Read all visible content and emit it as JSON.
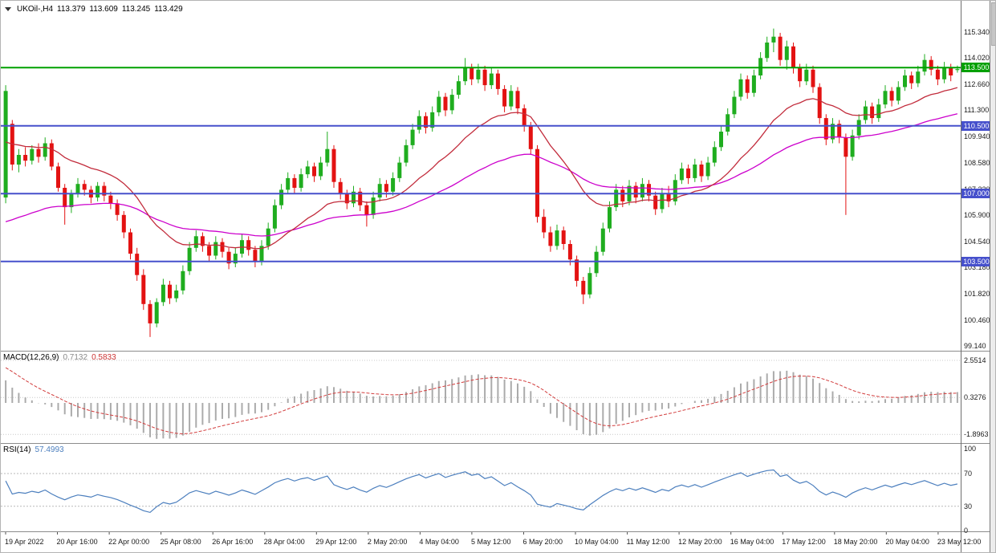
{
  "window": {
    "background": "#FFFFFF"
  },
  "header": {
    "symbol_period": "UKOil-,H4",
    "open": "113.379",
    "high": "113.609",
    "low": "113.245",
    "close": "113.429"
  },
  "macd_panel": {
    "label": "MACD(12,26,9)",
    "value_main": "0.7132",
    "value_signal": "0.5833"
  },
  "rsi_panel": {
    "label": "RSI(14)",
    "value": "57.4993"
  },
  "chart_data": {
    "type": "candlestick",
    "symbol": "UKOil-",
    "timeframe": "H4",
    "title": "UKOil-,H4",
    "ylim": [
      98.89,
      116.87
    ],
    "grid": false,
    "up_color": "#1FAD1F",
    "down_color": "#E31212",
    "price_ticks": [
      "115.340",
      "114.020",
      "112.660",
      "111.300",
      "109.940",
      "108.580",
      "107.220",
      "105.900",
      "104.540",
      "103.180",
      "101.820",
      "100.460",
      "99.140"
    ],
    "hlines": [
      {
        "price": 113.5,
        "label": "113.500",
        "color": "#00A000"
      },
      {
        "price": 110.5,
        "label": "110.500",
        "color": "#4650CC"
      },
      {
        "price": 107.0,
        "label": "107.000",
        "color": "#4650CC"
      },
      {
        "price": 103.5,
        "label": "103.500",
        "color": "#4650CC"
      }
    ],
    "time_labels": [
      "19 Apr 2022",
      "20 Apr 16:00",
      "22 Apr 00:00",
      "25 Apr 08:00",
      "26 Apr 16:00",
      "28 Apr 04:00",
      "29 Apr 12:00",
      "2 May 20:00",
      "4 May 04:00",
      "5 May 12:00",
      "6 May 20:00",
      "10 May 04:00",
      "11 May 12:00",
      "12 May 20:00",
      "16 May 04:00",
      "17 May 12:00",
      "18 May 20:00",
      "20 May 04:00",
      "23 May 12:00"
    ],
    "ma_fast": {
      "period": 21,
      "seed": 109.4,
      "color": "#C22C3C"
    },
    "ma_slow": {
      "period": 55,
      "seed": 105.3,
      "color": "#CC00CC"
    },
    "macd": {
      "fast": 12,
      "slow": 26,
      "signal": 9,
      "seed_fast": 112.8,
      "seed_slow": 111.3,
      "seed_signal": 2.3,
      "ylim": [
        -2.41,
        3.08
      ],
      "ticks": [
        {
          "v": 2.5514,
          "label": "2.5514"
        },
        {
          "v": 0.3276,
          "label": "0.3276"
        },
        {
          "v": -1.8963,
          "label": "-1.8963"
        }
      ],
      "histogram_color": "#ABABAB",
      "signal_color": "#D23C3C"
    },
    "rsi": {
      "period": 14,
      "seed_avg_gain": 0.5,
      "seed_avg_loss": 0.32,
      "ylim": [
        -0.5,
        106.2
      ],
      "ticks": [
        {
          "v": 100,
          "label": "100"
        },
        {
          "v": 70,
          "label": "70"
        },
        {
          "v": 30,
          "label": "30"
        },
        {
          "v": 0,
          "label": "0"
        }
      ],
      "levels": [
        70,
        30
      ],
      "color": "#4C7FBE"
    },
    "candles": [
      [
        106.8,
        112.6,
        106.5,
        112.3
      ],
      [
        110.6,
        110.8,
        108.2,
        108.5
      ],
      [
        108.5,
        109.3,
        108.1,
        109.0
      ],
      [
        109.0,
        109.4,
        108.4,
        108.7
      ],
      [
        108.7,
        109.5,
        108.5,
        109.3
      ],
      [
        109.3,
        109.6,
        108.6,
        108.9
      ],
      [
        108.9,
        109.9,
        108.7,
        109.6
      ],
      [
        109.6,
        109.8,
        108.2,
        108.4
      ],
      [
        108.4,
        108.6,
        107.1,
        107.3
      ],
      [
        107.3,
        107.5,
        105.4,
        106.3
      ],
      [
        106.3,
        107.2,
        106.0,
        107.0
      ],
      [
        107.0,
        107.8,
        106.8,
        107.5
      ],
      [
        107.5,
        107.7,
        106.9,
        107.2
      ],
      [
        107.2,
        107.4,
        106.5,
        106.8
      ],
      [
        106.8,
        107.6,
        106.6,
        107.4
      ],
      [
        107.4,
        107.6,
        106.6,
        106.9
      ],
      [
        106.9,
        107.1,
        106.2,
        106.5
      ],
      [
        106.5,
        106.7,
        105.6,
        105.9
      ],
      [
        105.9,
        106.1,
        104.7,
        105.0
      ],
      [
        105.0,
        105.2,
        103.6,
        103.9
      ],
      [
        103.9,
        104.2,
        102.5,
        102.8
      ],
      [
        102.8,
        103.1,
        101.0,
        101.3
      ],
      [
        101.3,
        101.5,
        99.6,
        100.3
      ],
      [
        100.3,
        101.6,
        100.1,
        101.4
      ],
      [
        101.4,
        102.6,
        101.2,
        102.3
      ],
      [
        102.3,
        102.5,
        101.3,
        101.6
      ],
      [
        101.6,
        102.3,
        101.4,
        102.0
      ],
      [
        102.0,
        103.3,
        101.8,
        103.0
      ],
      [
        103.0,
        104.5,
        102.8,
        104.2
      ],
      [
        104.2,
        105.1,
        104.0,
        104.8
      ],
      [
        104.8,
        105.0,
        104.0,
        104.3
      ],
      [
        104.3,
        104.5,
        103.5,
        103.8
      ],
      [
        103.8,
        104.8,
        103.6,
        104.5
      ],
      [
        104.5,
        104.7,
        103.7,
        104.0
      ],
      [
        104.0,
        104.2,
        103.1,
        103.4
      ],
      [
        103.4,
        104.2,
        103.2,
        103.9
      ],
      [
        103.9,
        104.9,
        103.7,
        104.6
      ],
      [
        104.6,
        104.8,
        103.8,
        104.1
      ],
      [
        104.1,
        104.3,
        103.2,
        103.5
      ],
      [
        103.5,
        104.6,
        103.3,
        104.3
      ],
      [
        104.3,
        105.5,
        104.1,
        105.2
      ],
      [
        105.2,
        106.7,
        105.0,
        106.4
      ],
      [
        106.4,
        107.5,
        106.2,
        107.2
      ],
      [
        107.2,
        108.1,
        107.0,
        107.8
      ],
      [
        107.8,
        108.0,
        107.0,
        107.3
      ],
      [
        107.3,
        108.3,
        107.1,
        108.0
      ],
      [
        108.0,
        108.7,
        107.8,
        108.4
      ],
      [
        108.4,
        108.6,
        107.6,
        107.9
      ],
      [
        107.9,
        108.9,
        107.7,
        108.6
      ],
      [
        108.6,
        110.2,
        108.4,
        109.3
      ],
      [
        109.3,
        109.5,
        107.3,
        107.6
      ],
      [
        107.6,
        107.8,
        106.7,
        107.0
      ],
      [
        107.0,
        107.2,
        106.2,
        106.5
      ],
      [
        106.5,
        107.4,
        106.3,
        107.1
      ],
      [
        107.1,
        107.3,
        106.1,
        106.4
      ],
      [
        106.4,
        106.6,
        105.3,
        105.9
      ],
      [
        105.9,
        107.1,
        105.7,
        106.8
      ],
      [
        106.8,
        107.8,
        106.6,
        107.5
      ],
      [
        107.5,
        107.7,
        106.8,
        107.1
      ],
      [
        107.1,
        108.1,
        106.9,
        107.8
      ],
      [
        107.8,
        108.9,
        107.6,
        108.6
      ],
      [
        108.6,
        109.8,
        108.4,
        109.5
      ],
      [
        109.5,
        110.6,
        109.3,
        110.3
      ],
      [
        110.3,
        111.3,
        110.1,
        111.0
      ],
      [
        111.0,
        111.2,
        110.1,
        110.4
      ],
      [
        110.4,
        111.5,
        110.2,
        111.2
      ],
      [
        111.2,
        112.3,
        111.0,
        112.0
      ],
      [
        112.0,
        112.2,
        111.0,
        111.3
      ],
      [
        111.3,
        112.4,
        111.1,
        112.1
      ],
      [
        112.1,
        113.1,
        111.9,
        112.8
      ],
      [
        112.8,
        114.0,
        112.6,
        113.5
      ],
      [
        113.5,
        113.7,
        112.6,
        112.9
      ],
      [
        112.9,
        113.7,
        112.7,
        113.4
      ],
      [
        113.4,
        113.6,
        112.3,
        112.6
      ],
      [
        112.6,
        113.5,
        112.4,
        113.2
      ],
      [
        113.2,
        113.4,
        112.1,
        112.4
      ],
      [
        112.4,
        112.6,
        111.2,
        111.5
      ],
      [
        111.5,
        112.6,
        111.3,
        112.3
      ],
      [
        112.3,
        112.5,
        111.1,
        111.4
      ],
      [
        111.4,
        111.6,
        110.2,
        110.5
      ],
      [
        110.5,
        110.7,
        109.0,
        109.3
      ],
      [
        109.3,
        109.5,
        105.5,
        105.8
      ],
      [
        105.8,
        106.2,
        104.7,
        105.0
      ],
      [
        105.0,
        105.3,
        104.0,
        104.3
      ],
      [
        104.3,
        105.4,
        104.1,
        105.1
      ],
      [
        105.1,
        105.3,
        104.1,
        104.4
      ],
      [
        104.4,
        104.6,
        103.3,
        103.6
      ],
      [
        103.6,
        103.8,
        102.2,
        102.5
      ],
      [
        102.5,
        102.7,
        101.3,
        101.8
      ],
      [
        101.8,
        103.2,
        101.6,
        102.9
      ],
      [
        102.9,
        104.3,
        102.7,
        104.0
      ],
      [
        104.0,
        105.5,
        103.8,
        105.2
      ],
      [
        105.2,
        106.6,
        105.0,
        106.3
      ],
      [
        106.3,
        107.5,
        106.1,
        107.2
      ],
      [
        107.2,
        107.4,
        106.3,
        106.6
      ],
      [
        106.6,
        107.7,
        106.4,
        107.4
      ],
      [
        107.4,
        107.6,
        106.5,
        106.8
      ],
      [
        106.8,
        107.8,
        106.6,
        107.5
      ],
      [
        107.5,
        107.7,
        106.6,
        106.9
      ],
      [
        106.9,
        107.1,
        105.9,
        106.2
      ],
      [
        106.2,
        107.3,
        106.0,
        107.0
      ],
      [
        107.0,
        107.4,
        106.3,
        106.6
      ],
      [
        106.6,
        108.0,
        106.4,
        107.7
      ],
      [
        107.7,
        108.6,
        107.5,
        108.3
      ],
      [
        108.3,
        108.5,
        107.5,
        107.8
      ],
      [
        107.8,
        108.8,
        107.6,
        108.5
      ],
      [
        108.5,
        108.7,
        107.6,
        107.9
      ],
      [
        107.9,
        108.9,
        107.7,
        108.6
      ],
      [
        108.6,
        109.7,
        108.4,
        109.4
      ],
      [
        109.4,
        110.5,
        109.2,
        110.2
      ],
      [
        110.2,
        111.4,
        110.0,
        111.1
      ],
      [
        111.1,
        112.3,
        110.9,
        112.0
      ],
      [
        112.0,
        113.2,
        111.8,
        112.9
      ],
      [
        112.9,
        113.1,
        111.9,
        112.2
      ],
      [
        112.2,
        113.4,
        112.0,
        113.1
      ],
      [
        113.1,
        114.3,
        112.9,
        114.0
      ],
      [
        114.0,
        115.1,
        113.8,
        114.8
      ],
      [
        114.8,
        115.52,
        114.3,
        115.1
      ],
      [
        115.1,
        115.3,
        113.6,
        113.9
      ],
      [
        113.9,
        114.9,
        113.4,
        114.6
      ],
      [
        114.6,
        114.8,
        113.2,
        113.5
      ],
      [
        113.5,
        113.7,
        112.5,
        112.8
      ],
      [
        112.8,
        113.7,
        112.6,
        113.4
      ],
      [
        113.4,
        113.6,
        112.2,
        112.5
      ],
      [
        112.5,
        112.7,
        110.6,
        110.9
      ],
      [
        110.9,
        111.1,
        109.5,
        109.8
      ],
      [
        109.8,
        110.9,
        109.6,
        110.6
      ],
      [
        110.6,
        110.8,
        109.6,
        109.9
      ],
      [
        109.9,
        110.1,
        105.9,
        108.9
      ],
      [
        108.9,
        110.3,
        108.7,
        110.0
      ],
      [
        110.0,
        111.1,
        109.8,
        110.8
      ],
      [
        110.8,
        111.8,
        110.6,
        111.5
      ],
      [
        111.5,
        111.7,
        110.6,
        110.9
      ],
      [
        110.9,
        111.9,
        110.7,
        111.6
      ],
      [
        111.6,
        112.6,
        111.4,
        112.3
      ],
      [
        112.3,
        112.5,
        111.5,
        111.8
      ],
      [
        111.8,
        112.8,
        111.6,
        112.5
      ],
      [
        112.5,
        113.4,
        112.3,
        113.1
      ],
      [
        113.1,
        113.3,
        112.4,
        112.7
      ],
      [
        112.7,
        113.6,
        112.5,
        113.3
      ],
      [
        113.3,
        114.2,
        113.1,
        113.9
      ],
      [
        113.9,
        114.1,
        113.1,
        113.4
      ],
      [
        113.4,
        113.6,
        112.6,
        112.9
      ],
      [
        112.9,
        113.8,
        112.7,
        113.5
      ],
      [
        113.5,
        113.7,
        112.8,
        113.1
      ],
      [
        113.379,
        113.609,
        113.245,
        113.429
      ]
    ]
  }
}
